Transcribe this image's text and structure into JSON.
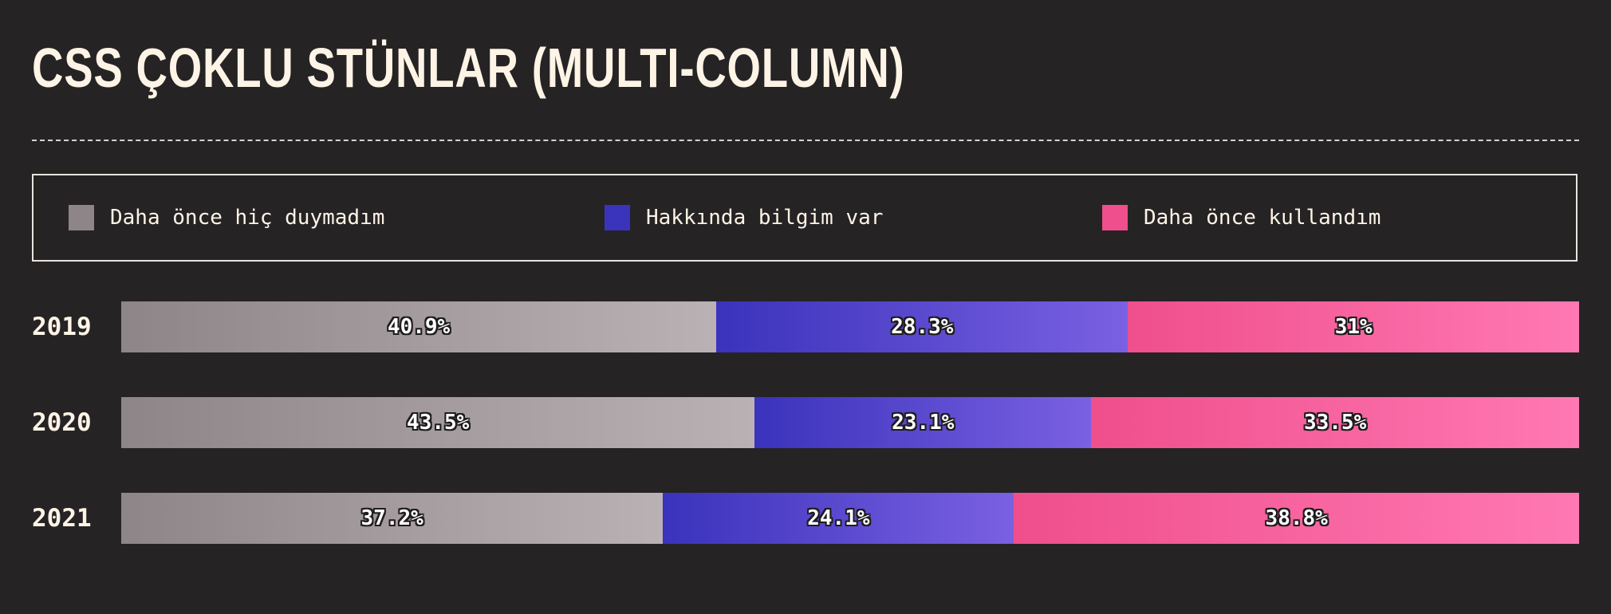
{
  "chart_data": {
    "type": "bar",
    "orientation": "horizontal",
    "stacked": true,
    "title": "CSS ÇOKLU STÜNLAR (MULTI-COLUMN)",
    "categories": [
      "2019",
      "2020",
      "2021"
    ],
    "series": [
      {
        "name": "Daha önce hiç duymadım",
        "color": "#8e8589",
        "gradient": [
          "#8e8589",
          "#bab1b4"
        ],
        "values": [
          40.9,
          43.5,
          37.2
        ],
        "labels": [
          "40.9%",
          "43.5%",
          "37.2%"
        ]
      },
      {
        "name": "Hakkında bilgim var",
        "color": "#3a33bb",
        "gradient": [
          "#3a33bb",
          "#7a60e2"
        ],
        "values": [
          28.3,
          23.1,
          24.1
        ],
        "labels": [
          "28.3%",
          "23.1%",
          "24.1%"
        ]
      },
      {
        "name": "Daha önce kullandım",
        "color": "#ef4f8c",
        "gradient": [
          "#ef4f8c",
          "#ff78b3"
        ],
        "values": [
          31,
          33.5,
          38.8
        ],
        "labels": [
          "31%",
          "33.5%",
          "38.8%"
        ]
      }
    ],
    "legend_placement": "top",
    "grid": false
  }
}
